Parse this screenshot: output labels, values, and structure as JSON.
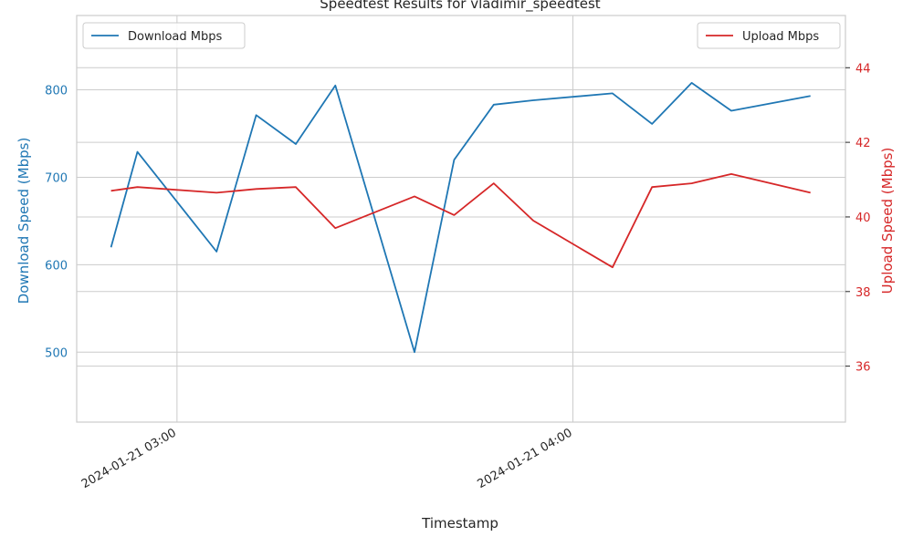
{
  "chart_data": {
    "type": "line",
    "title": "Speedtest Results for vladimir_speedtest",
    "xlabel": "Timestamp",
    "ylabel_left": "Download Speed (Mbps)",
    "ylabel_right": "Upload Speed (Mbps)",
    "x_ticks": [
      {
        "label": "2024-01-21 03:00",
        "minutes": 0
      },
      {
        "label": "2024-01-21 04:00",
        "minutes": 60
      }
    ],
    "xlim_minutes": [
      -15.2,
      101.3
    ],
    "ylim_left": [
      420,
      885
    ],
    "ylim_right": [
      34.5,
      45.4
    ],
    "yticks_left": [
      500,
      600,
      700,
      800
    ],
    "yticks_right": [
      36,
      38,
      40,
      42,
      44
    ],
    "grid": true,
    "colors": {
      "download": "#1f77b4",
      "upload": "#d62728"
    },
    "series": [
      {
        "name": "Download Mbps",
        "axis": "left",
        "x_minutes": [
          -10,
          -6,
          6,
          12,
          18,
          24,
          36,
          42,
          48,
          54,
          66,
          72,
          78,
          84,
          96
        ],
        "values": [
          620,
          729,
          615,
          771,
          738,
          805,
          500,
          720,
          783,
          788,
          796,
          761,
          808,
          776,
          793
        ]
      },
      {
        "name": "Upload Mbps",
        "axis": "right",
        "x_minutes": [
          -10,
          -6,
          6,
          12,
          18,
          24,
          36,
          42,
          48,
          54,
          66,
          72,
          78,
          84,
          96
        ],
        "values": [
          40.7,
          40.8,
          40.65,
          40.75,
          40.8,
          39.7,
          40.55,
          40.05,
          40.9,
          39.9,
          38.65,
          40.8,
          40.9,
          41.15,
          40.65
        ]
      }
    ],
    "legends": [
      {
        "series": "Download Mbps",
        "position": "upper-left"
      },
      {
        "series": "Upload Mbps",
        "position": "upper-right"
      }
    ]
  }
}
